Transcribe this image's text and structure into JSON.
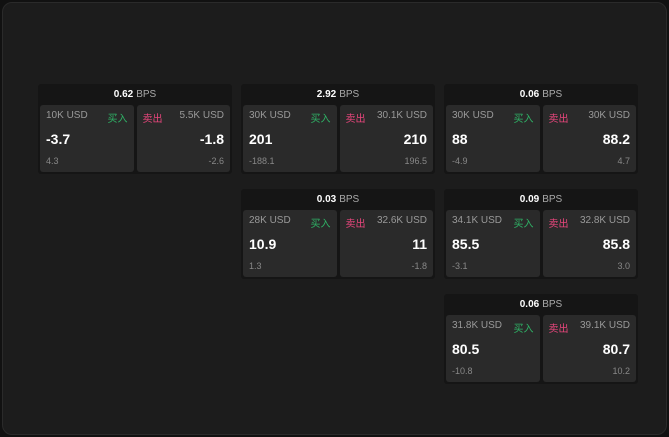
{
  "labels": {
    "buy": "买入",
    "sell": "卖出",
    "unit": "BPS"
  },
  "colors": {
    "buy": "#2fb366",
    "sell": "#e8467c"
  },
  "cards": [
    {
      "spread": "0.62",
      "left": {
        "size": "10K USD",
        "price": "-3.7",
        "change": "4.3"
      },
      "right": {
        "size": "5.5K USD",
        "price": "-1.8",
        "change": "-2.6"
      }
    },
    {
      "spread": "2.92",
      "left": {
        "size": "30K USD",
        "price": "201",
        "change": "-188.1"
      },
      "right": {
        "size": "30.1K USD",
        "price": "210",
        "change": "196.5"
      }
    },
    {
      "spread": "0.06",
      "left": {
        "size": "30K USD",
        "price": "88",
        "change": "-4.9"
      },
      "right": {
        "size": "30K USD",
        "price": "88.2",
        "change": "4.7"
      }
    },
    {
      "spread": "0.03",
      "left": {
        "size": "28K USD",
        "price": "10.9",
        "change": "1.3"
      },
      "right": {
        "size": "32.6K USD",
        "price": "11",
        "change": "-1.8"
      }
    },
    {
      "spread": "0.09",
      "left": {
        "size": "34.1K USD",
        "price": "85.5",
        "change": "-3.1"
      },
      "right": {
        "size": "32.8K USD",
        "price": "85.8",
        "change": "3.0"
      }
    },
    {
      "spread": "0.06",
      "left": {
        "size": "31.8K USD",
        "price": "80.5",
        "change": "-10.8"
      },
      "right": {
        "size": "39.1K USD",
        "price": "80.7",
        "change": "10.2"
      }
    }
  ]
}
